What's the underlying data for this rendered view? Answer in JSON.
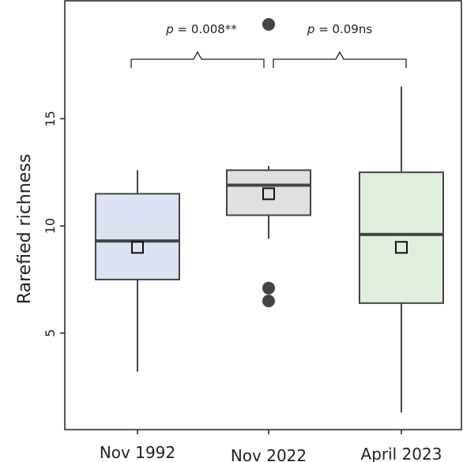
{
  "chart_data": {
    "type": "box",
    "ylabel": "Rarefied richness",
    "ylim": [
      0.5,
      20.5
    ],
    "yticks": [
      5,
      10,
      15
    ],
    "categories": [
      "Nov 1992",
      "Nov 2022",
      "April 2023"
    ],
    "boxes": [
      {
        "category": "Nov 1992",
        "q1": 7.5,
        "median": 9.3,
        "q3": 11.5,
        "whisker_low": 3.2,
        "whisker_high": 12.6,
        "mean": 9.0,
        "outliers": [],
        "color": "#dbe3f2"
      },
      {
        "category": "Nov 2022",
        "q1": 10.5,
        "median": 11.9,
        "q3": 12.6,
        "whisker_low": 9.4,
        "whisker_high": 12.8,
        "mean": 11.5,
        "outliers": [
          19.4,
          7.1,
          6.5
        ],
        "color": "#e0e0e0"
      },
      {
        "category": "April 2023",
        "q1": 6.4,
        "median": 9.6,
        "q3": 12.5,
        "whisker_low": 1.3,
        "whisker_high": 16.5,
        "mean": 9.0,
        "outliers": [],
        "color": "#e0eedc"
      }
    ],
    "annotations": [
      {
        "from": "Nov 1992",
        "to": "Nov 2022",
        "p_symbol": "p",
        "text": " = 0.008**"
      },
      {
        "from": "Nov 2022",
        "to": "April 2023",
        "p_symbol": "p",
        "text": " = 0.09ns"
      }
    ]
  }
}
